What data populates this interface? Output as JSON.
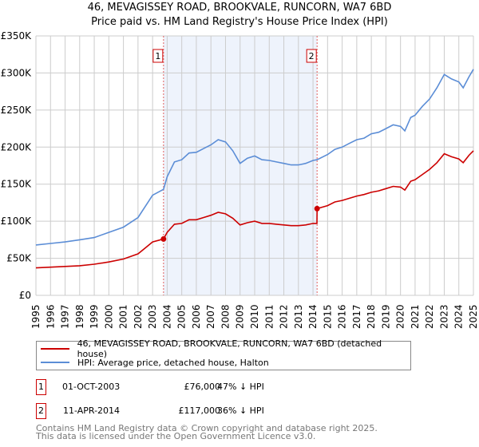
{
  "chart_data": {
    "type": "line",
    "title": "46, MEVAGISSEY ROAD, BROOKVALE, RUNCORN, WA7 6BD",
    "subtitle": "Price paid vs. HM Land Registry's House Price Index (HPI)",
    "xlim": [
      1995,
      2025
    ],
    "ylim": [
      0,
      350000
    ],
    "yticks": [
      0,
      50000,
      100000,
      150000,
      200000,
      250000,
      300000,
      350000
    ],
    "ytick_labels": [
      "£0",
      "£50K",
      "£100K",
      "£150K",
      "£200K",
      "£250K",
      "£300K",
      "£350K"
    ],
    "xtick_labels": [
      "1995",
      "1996",
      "1997",
      "1998",
      "1999",
      "2000",
      "2001",
      "2002",
      "2003",
      "2004",
      "2005",
      "2006",
      "2007",
      "2008",
      "2009",
      "2010",
      "2011",
      "2012",
      "2013",
      "2014",
      "2015",
      "2016",
      "2017",
      "2018",
      "2019",
      "2020",
      "2021",
      "2022",
      "2023",
      "2024",
      "2025"
    ],
    "grid": true,
    "shaded_period": [
      2003.75,
      2014.28
    ],
    "series": [
      {
        "name": "HPI: Average price, detached house, Halton",
        "color": "#5b8dd6",
        "x": [
          1995,
          1996,
          1997,
          1998,
          1999,
          2000,
          2001,
          2002,
          2002.5,
          2003,
          2003.75,
          2004,
          2004.5,
          2005,
          2005.5,
          2006,
          2006.5,
          2007,
          2007.5,
          2008,
          2008.5,
          2009,
          2009.5,
          2010,
          2010.5,
          2011,
          2011.5,
          2012,
          2012.5,
          2013,
          2013.5,
          2014,
          2014.28,
          2015,
          2015.5,
          2016,
          2016.5,
          2017,
          2017.5,
          2018,
          2018.5,
          2019,
          2019.5,
          2020,
          2020.3,
          2020.7,
          2021,
          2021.5,
          2022,
          2022.5,
          2023,
          2023.5,
          2024,
          2024.3,
          2024.7,
          2025
        ],
        "values": [
          68000,
          70000,
          72000,
          75000,
          78000,
          85000,
          92000,
          105000,
          120000,
          135000,
          143000,
          160000,
          180000,
          183000,
          192000,
          193000,
          198000,
          203000,
          210000,
          207000,
          195000,
          178000,
          185000,
          188000,
          183000,
          182000,
          180000,
          178000,
          176000,
          176000,
          178000,
          182000,
          183000,
          190000,
          197000,
          200000,
          205000,
          210000,
          212000,
          218000,
          220000,
          225000,
          230000,
          228000,
          222000,
          240000,
          243000,
          255000,
          265000,
          280000,
          298000,
          292000,
          288000,
          280000,
          295000,
          305000
        ]
      },
      {
        "name": "46, MEVAGISSEY ROAD, BROOKVALE, RUNCORN, WA7 6BD (detached house)",
        "color": "#cc0000",
        "x": [
          1995,
          1996,
          1997,
          1998,
          1999,
          2000,
          2001,
          2002,
          2002.5,
          2003,
          2003.75,
          2004,
          2004.5,
          2005,
          2005.5,
          2006,
          2006.5,
          2007,
          2007.5,
          2008,
          2008.5,
          2009,
          2009.5,
          2010,
          2010.5,
          2011,
          2011.5,
          2012,
          2012.5,
          2013,
          2013.5,
          2014,
          2014.27,
          2014.28,
          2015,
          2015.5,
          2016,
          2016.5,
          2017,
          2017.5,
          2018,
          2018.5,
          2019,
          2019.5,
          2020,
          2020.3,
          2020.7,
          2021,
          2021.5,
          2022,
          2022.5,
          2023,
          2023.5,
          2024,
          2024.3,
          2024.7,
          2025
        ],
        "values": [
          37000,
          38000,
          39000,
          40000,
          42000,
          45000,
          49000,
          56000,
          64000,
          72000,
          76000,
          85000,
          96000,
          97000,
          102000,
          102000,
          105000,
          108000,
          112000,
          110000,
          104000,
          95000,
          98000,
          100000,
          97000,
          97000,
          96000,
          95000,
          94000,
          94000,
          95000,
          97000,
          97000,
          117000,
          121000,
          126000,
          128000,
          131000,
          134000,
          136000,
          139000,
          141000,
          144000,
          147000,
          146000,
          142000,
          154000,
          156000,
          163000,
          170000,
          179000,
          191000,
          187000,
          184000,
          179000,
          189000,
          195000
        ]
      }
    ],
    "sales": [
      {
        "label": "1",
        "x": 2003.75,
        "value": 76000,
        "date": "01-OCT-2003",
        "price": "£76,000",
        "hpi_diff": "47% ↓ HPI"
      },
      {
        "label": "2",
        "x": 2014.28,
        "value": 117000,
        "date": "11-APR-2014",
        "price": "£117,000",
        "hpi_diff": "36% ↓ HPI"
      }
    ]
  },
  "footer": {
    "line1": "Contains HM Land Registry data © Crown copyright and database right 2025.",
    "line2": "This data is licensed under the Open Government Licence v3.0."
  }
}
